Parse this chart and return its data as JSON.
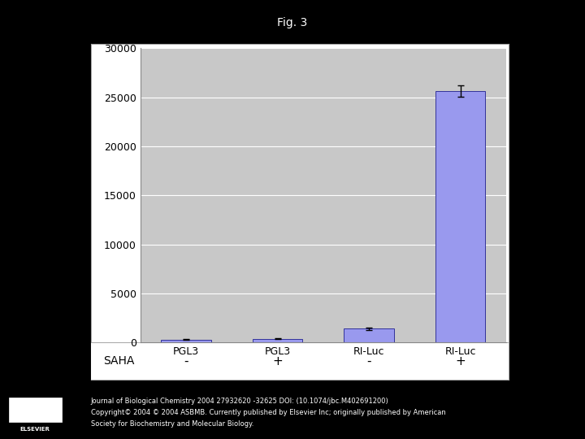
{
  "title": "Fig. 3",
  "categories": [
    "PGL3",
    "PGL3",
    "RI-Luc",
    "RI-Luc"
  ],
  "values": [
    300,
    380,
    1400,
    25600
  ],
  "errors": [
    30,
    40,
    120,
    580
  ],
  "bar_color": "#9999EE",
  "bar_edge_color": "#333399",
  "ylim": [
    0,
    30000
  ],
  "yticks": [
    0,
    5000,
    10000,
    15000,
    20000,
    25000,
    30000
  ],
  "saha_labels": [
    "-",
    "+",
    "-",
    "+"
  ],
  "saha_text": "SAHA",
  "plot_bg_color": "#C8C8C8",
  "outer_bg_color": "#000000",
  "chart_bg_color": "#FFFFFF",
  "title_color": "#FFFFFF",
  "title_fontsize": 10,
  "tick_fontsize": 9,
  "xlabel_fontsize": 9,
  "saha_fontsize": 10,
  "footer_text1": "Journal of Biological Chemistry 2004 27932620 -32625 DOI: (10.1074/jbc.M402691200)",
  "footer_text2": "Copyright© 2004 © 2004 ASBMB. Currently published by Elsevier Inc; originally published by American",
  "footer_text3": "Society for Biochemistry and Molecular Biology.",
  "footer_fontsize": 6.0,
  "elsevier_text": "ELSEVIER"
}
